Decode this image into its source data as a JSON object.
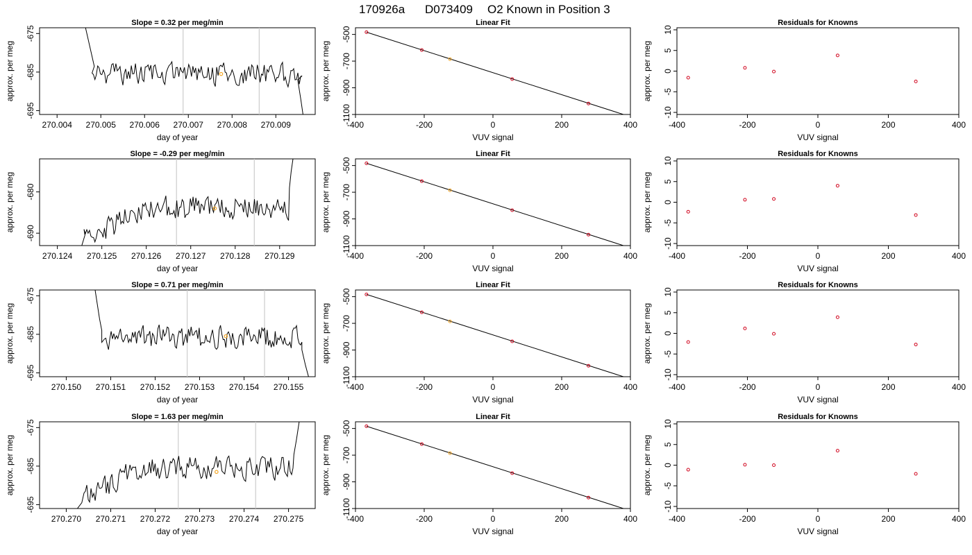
{
  "figure": {
    "run_id": "170926a",
    "sample_id": "D073409",
    "description": "O2 Known in Position  3"
  },
  "colors": {
    "trace": "#000000",
    "marker_orange": "#f5a623",
    "residual_red": "#d0021b",
    "vline_gray": "#cccccc",
    "axes": "#000000"
  },
  "chart_data": [
    {
      "id": "row1-timeseries",
      "type": "line",
      "title_prefix": "Slope = ",
      "slope": "0.32",
      "title_suffix": " per meg/min",
      "xlabel": "day of year",
      "ylabel": "approx. per meg",
      "xlim": [
        270.0036,
        270.0099
      ],
      "ylim": [
        -696,
        -673.5
      ],
      "xticks": [
        "270.004",
        "270.005",
        "270.006",
        "270.007",
        "270.008",
        "270.009"
      ],
      "yticks": [
        "-675",
        "-685",
        "-695"
      ],
      "ytick_values": [
        -675,
        -685,
        -695
      ],
      "vlines": [
        270.00688,
        270.00862
      ],
      "highlight": {
        "x": 270.00775,
        "y": -685.5
      },
      "base": -685.5,
      "start": 270.0048,
      "end": 270.0096,
      "seed": 1,
      "edge_start": [
        [
          270.00465,
          -673.5
        ],
        [
          270.00478,
          -680
        ],
        [
          270.00485,
          -683.5
        ]
      ],
      "edge_end": [
        [
          270.0095,
          -687
        ],
        [
          270.00957,
          -692
        ],
        [
          270.00962,
          -696
        ]
      ]
    },
    {
      "id": "row1-fit",
      "type": "scatter",
      "title": "Linear Fit",
      "xlabel": "VUV signal",
      "ylabel": "approx. per meg",
      "xlim": [
        -400,
        400
      ],
      "ylim": [
        -1100,
        -450
      ],
      "xticks": [
        "-400",
        "-200",
        "0",
        "200",
        "400"
      ],
      "xtick_values": [
        -400,
        -200,
        0,
        200,
        400
      ],
      "yticks": [
        "-500",
        "-700",
        "-900",
        "-1100"
      ],
      "ytick_values": [
        -500,
        -700,
        -900,
        -1100
      ],
      "points": [
        {
          "x": -368,
          "y": -483
        },
        {
          "x": -207,
          "y": -617
        },
        {
          "x": -125,
          "y": -685,
          "highlight": true
        },
        {
          "x": 56,
          "y": -835
        },
        {
          "x": 278,
          "y": -1018
        }
      ],
      "fit_line": [
        [
          -368,
          -483
        ],
        [
          392,
          -1110
        ]
      ]
    },
    {
      "id": "row1-resid",
      "type": "scatter",
      "title": "Residuals for Knowns",
      "xlabel": "VUV signal",
      "ylabel": "approx. per meg",
      "xlim": [
        -400,
        400
      ],
      "ylim": [
        -10.5,
        10.5
      ],
      "xticks": [
        "-400",
        "-200",
        "0",
        "200",
        "400"
      ],
      "xtick_values": [
        -400,
        -200,
        0,
        200,
        400
      ],
      "yticks": [
        "10",
        "5",
        "0",
        "-5",
        "-10"
      ],
      "ytick_values": [
        10,
        5,
        0,
        -5,
        -10
      ],
      "points": [
        {
          "x": -368,
          "y": -1.6
        },
        {
          "x": -207,
          "y": 0.8
        },
        {
          "x": -125,
          "y": -0.1
        },
        {
          "x": 56,
          "y": 3.8
        },
        {
          "x": 278,
          "y": -2.5
        }
      ]
    },
    {
      "id": "row2-timeseries",
      "type": "line",
      "title_prefix": "Slope = ",
      "slope": "-0.29",
      "title_suffix": " per meg/min",
      "xlabel": "day of year",
      "ylabel": "approx. per meg",
      "xlim": [
        270.1236,
        270.1298
      ],
      "ylim": [
        -693,
        -672
      ],
      "xticks": [
        "270.124",
        "270.125",
        "270.126",
        "270.127",
        "270.128",
        "270.129"
      ],
      "yticks": [
        "-680",
        "-690"
      ],
      "ytick_values": [
        -680,
        -690
      ],
      "vlines": [
        270.12668,
        270.12843
      ],
      "highlight": {
        "x": 270.12754,
        "y": -684
      },
      "base": -684,
      "start": 270.1246,
      "end": 270.1292,
      "seed": 2,
      "edge_start": [
        [
          270.12455,
          -693
        ],
        [
          270.12462,
          -690.5
        ]
      ],
      "edge_end": [
        [
          270.12922,
          -679
        ],
        [
          270.12926,
          -675
        ],
        [
          270.1293,
          -672
        ]
      ]
    },
    {
      "id": "row2-fit",
      "type": "scatter",
      "title": "Linear Fit",
      "xlabel": "VUV signal",
      "ylabel": "approx. per meg",
      "xlim": [
        -400,
        400
      ],
      "ylim": [
        -1100,
        -450
      ],
      "xticks": [
        "-400",
        "-200",
        "0",
        "200",
        "400"
      ],
      "xtick_values": [
        -400,
        -200,
        0,
        200,
        400
      ],
      "yticks": [
        "-500",
        "-700",
        "-900",
        "-1100"
      ],
      "ytick_values": [
        -500,
        -700,
        -900,
        -1100
      ],
      "points": [
        {
          "x": -368,
          "y": -483
        },
        {
          "x": -207,
          "y": -617
        },
        {
          "x": -125,
          "y": -685,
          "highlight": true
        },
        {
          "x": 56,
          "y": -835
        },
        {
          "x": 278,
          "y": -1018
        }
      ],
      "fit_line": [
        [
          -368,
          -483
        ],
        [
          392,
          -1110
        ]
      ]
    },
    {
      "id": "row2-resid",
      "type": "scatter",
      "title": "Residuals for Knowns",
      "xlabel": "VUV signal",
      "ylabel": "approx. per meg",
      "xlim": [
        -400,
        400
      ],
      "ylim": [
        -10.5,
        10.5
      ],
      "xticks": [
        "-400",
        "-200",
        "0",
        "200",
        "400"
      ],
      "xtick_values": [
        -400,
        -200,
        0,
        200,
        400
      ],
      "yticks": [
        "10",
        "5",
        "0",
        "-5",
        "-10"
      ],
      "ytick_values": [
        10,
        5,
        0,
        -5,
        -10
      ],
      "points": [
        {
          "x": -368,
          "y": -2.3
        },
        {
          "x": -207,
          "y": 0.6
        },
        {
          "x": -125,
          "y": 0.8
        },
        {
          "x": 56,
          "y": 4.0
        },
        {
          "x": 278,
          "y": -3.1
        }
      ]
    },
    {
      "id": "row3-timeseries",
      "type": "line",
      "title_prefix": "Slope = ",
      "slope": "0.71",
      "title_suffix": " per meg/min",
      "xlabel": "day of year",
      "ylabel": "approx. per meg",
      "xlim": [
        270.1494,
        270.1556
      ],
      "ylim": [
        -696,
        -673.5
      ],
      "xticks": [
        "270.150",
        "270.151",
        "270.152",
        "270.153",
        "270.154",
        "270.155"
      ],
      "yticks": [
        "-675",
        "-685",
        "-695"
      ],
      "ytick_values": [
        -675,
        -685,
        -695
      ],
      "vlines": [
        270.15272,
        270.15446
      ],
      "highlight": {
        "x": 270.15359,
        "y": -685.5
      },
      "base": -685.8,
      "start": 270.1508,
      "end": 270.1553,
      "seed": 3,
      "edge_start": [
        [
          270.15065,
          -673.5
        ],
        [
          270.15075,
          -681
        ],
        [
          270.1508,
          -684
        ]
      ],
      "edge_end": [
        [
          270.1553,
          -689
        ],
        [
          270.15538,
          -693
        ],
        [
          270.15545,
          -696
        ]
      ]
    },
    {
      "id": "row3-fit",
      "type": "scatter",
      "title": "Linear Fit",
      "xlabel": "VUV signal",
      "ylabel": "approx. per meg",
      "xlim": [
        -400,
        400
      ],
      "ylim": [
        -1100,
        -450
      ],
      "xticks": [
        "-400",
        "-200",
        "0",
        "200",
        "400"
      ],
      "xtick_values": [
        -400,
        -200,
        0,
        200,
        400
      ],
      "yticks": [
        "-500",
        "-700",
        "-900",
        "-1100"
      ],
      "ytick_values": [
        -500,
        -700,
        -900,
        -1100
      ],
      "points": [
        {
          "x": -368,
          "y": -483
        },
        {
          "x": -207,
          "y": -617
        },
        {
          "x": -125,
          "y": -685,
          "highlight": true
        },
        {
          "x": 56,
          "y": -835
        },
        {
          "x": 278,
          "y": -1018
        }
      ],
      "fit_line": [
        [
          -368,
          -483
        ],
        [
          392,
          -1110
        ]
      ]
    },
    {
      "id": "row3-resid",
      "type": "scatter",
      "title": "Residuals for Knowns",
      "xlabel": "VUV signal",
      "ylabel": "approx. per meg",
      "xlim": [
        -400,
        400
      ],
      "ylim": [
        -10.5,
        10.5
      ],
      "xticks": [
        "-400",
        "-200",
        "0",
        "200",
        "400"
      ],
      "xtick_values": [
        -400,
        -200,
        0,
        200,
        400
      ],
      "yticks": [
        "10",
        "5",
        "0",
        "-5",
        "-10"
      ],
      "ytick_values": [
        10,
        5,
        0,
        -5,
        -10
      ],
      "points": [
        {
          "x": -368,
          "y": -2.1
        },
        {
          "x": -207,
          "y": 1.2
        },
        {
          "x": -125,
          "y": -0.1
        },
        {
          "x": 56,
          "y": 3.9
        },
        {
          "x": 278,
          "y": -2.7
        }
      ]
    },
    {
      "id": "row4-timeseries",
      "type": "line",
      "title_prefix": "Slope = ",
      "slope": "1.63",
      "title_suffix": " per meg/min",
      "xlabel": "day of year",
      "ylabel": "approx. per meg",
      "xlim": [
        270.2694,
        270.2756
      ],
      "ylim": [
        -696,
        -673.5
      ],
      "xticks": [
        "270.270",
        "270.271",
        "270.272",
        "270.273",
        "270.274",
        "270.275"
      ],
      "yticks": [
        "-675",
        "-685",
        "-695"
      ],
      "ytick_values": [
        -675,
        -685,
        -695
      ],
      "vlines": [
        270.27252,
        270.27426
      ],
      "highlight": {
        "x": 270.27338,
        "y": -686.5
      },
      "base": -685.5,
      "start": 270.2704,
      "end": 270.2751,
      "seed": 4,
      "edge_start": [
        [
          270.27025,
          -696
        ],
        [
          270.27035,
          -694.5
        ]
      ],
      "edge_end": [
        [
          270.27512,
          -682
        ],
        [
          270.27518,
          -678
        ],
        [
          270.27524,
          -673.5
        ]
      ]
    },
    {
      "id": "row4-fit",
      "type": "scatter",
      "title": "Linear Fit",
      "xlabel": "VUV signal",
      "ylabel": "approx. per meg",
      "xlim": [
        -400,
        400
      ],
      "ylim": [
        -1100,
        -450
      ],
      "xticks": [
        "-400",
        "-200",
        "0",
        "200",
        "400"
      ],
      "xtick_values": [
        -400,
        -200,
        0,
        200,
        400
      ],
      "yticks": [
        "-500",
        "-700",
        "-900",
        "-1100"
      ],
      "ytick_values": [
        -500,
        -700,
        -900,
        -1100
      ],
      "points": [
        {
          "x": -368,
          "y": -483
        },
        {
          "x": -207,
          "y": -617
        },
        {
          "x": -125,
          "y": -685,
          "highlight": true
        },
        {
          "x": 56,
          "y": -835
        },
        {
          "x": 278,
          "y": -1018
        }
      ],
      "fit_line": [
        [
          -368,
          -483
        ],
        [
          392,
          -1110
        ]
      ]
    },
    {
      "id": "row4-resid",
      "type": "scatter",
      "title": "Residuals for Knowns",
      "xlabel": "VUV signal",
      "ylabel": "approx. per meg",
      "xlim": [
        -400,
        400
      ],
      "ylim": [
        -10.5,
        10.5
      ],
      "xticks": [
        "-400",
        "-200",
        "0",
        "200",
        "400"
      ],
      "xtick_values": [
        -400,
        -200,
        0,
        200,
        400
      ],
      "yticks": [
        "10",
        "5",
        "0",
        "-5",
        "-10"
      ],
      "ytick_values": [
        10,
        5,
        0,
        -5,
        -10
      ],
      "points": [
        {
          "x": -368,
          "y": -1.1
        },
        {
          "x": -207,
          "y": 0.1
        },
        {
          "x": -125,
          "y": 0.0
        },
        {
          "x": 56,
          "y": 3.5
        },
        {
          "x": 278,
          "y": -2.1
        }
      ]
    }
  ]
}
